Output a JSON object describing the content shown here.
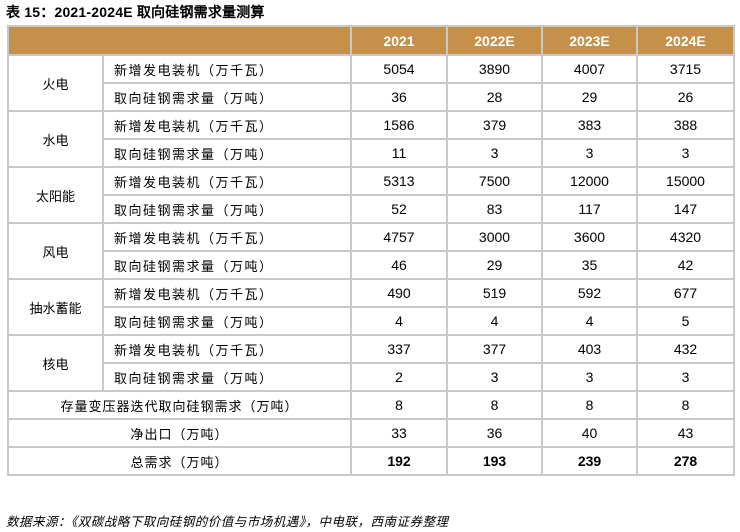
{
  "title": "表 15：2021-2024E 取向硅钢需求量测算",
  "header": {
    "blank": "",
    "years": [
      "2021",
      "2022E",
      "2023E",
      "2024E"
    ]
  },
  "groups": [
    {
      "name": "火电",
      "rows": [
        {
          "label": "新增发电装机（万千瓦）",
          "values": [
            "5054",
            "3890",
            "4007",
            "3715"
          ]
        },
        {
          "label": "取向硅钢需求量（万吨）",
          "values": [
            "36",
            "28",
            "29",
            "26"
          ]
        }
      ]
    },
    {
      "name": "水电",
      "rows": [
        {
          "label": "新增发电装机（万千瓦）",
          "values": [
            "1586",
            "379",
            "383",
            "388"
          ]
        },
        {
          "label": "取向硅钢需求量（万吨）",
          "values": [
            "11",
            "3",
            "3",
            "3"
          ]
        }
      ]
    },
    {
      "name": "太阳能",
      "rows": [
        {
          "label": "新增发电装机（万千瓦）",
          "values": [
            "5313",
            "7500",
            "12000",
            "15000"
          ]
        },
        {
          "label": "取向硅钢需求量（万吨）",
          "values": [
            "52",
            "83",
            "117",
            "147"
          ]
        }
      ]
    },
    {
      "name": "风电",
      "rows": [
        {
          "label": "新增发电装机（万千瓦）",
          "values": [
            "4757",
            "3000",
            "3600",
            "4320"
          ]
        },
        {
          "label": "取向硅钢需求量（万吨）",
          "values": [
            "46",
            "29",
            "35",
            "42"
          ]
        }
      ]
    },
    {
      "name": "抽水蓄能",
      "rows": [
        {
          "label": "新增发电装机（万千瓦）",
          "values": [
            "490",
            "519",
            "592",
            "677"
          ]
        },
        {
          "label": "取向硅钢需求量（万吨）",
          "values": [
            "4",
            "4",
            "4",
            "5"
          ]
        }
      ]
    },
    {
      "name": "核电",
      "rows": [
        {
          "label": "新增发电装机（万千瓦）",
          "values": [
            "337",
            "377",
            "403",
            "432"
          ]
        },
        {
          "label": "取向硅钢需求量（万吨）",
          "values": [
            "2",
            "3",
            "3",
            "3"
          ]
        }
      ]
    }
  ],
  "summary": [
    {
      "label": "存量变压器迭代取向硅钢需求（万吨）",
      "values": [
        "8",
        "8",
        "8",
        "8"
      ]
    },
    {
      "label": "净出口（万吨）",
      "values": [
        "33",
        "36",
        "40",
        "43"
      ]
    },
    {
      "label": "总需求（万吨）",
      "values": [
        "192",
        "193",
        "239",
        "278"
      ]
    }
  ],
  "source": "数据来源：《双碳战略下取向硅钢的价值与市场机遇》，中电联，西南证券整理",
  "colors": {
    "header_bg": "#c4904a",
    "border": "#c9c9c9"
  }
}
